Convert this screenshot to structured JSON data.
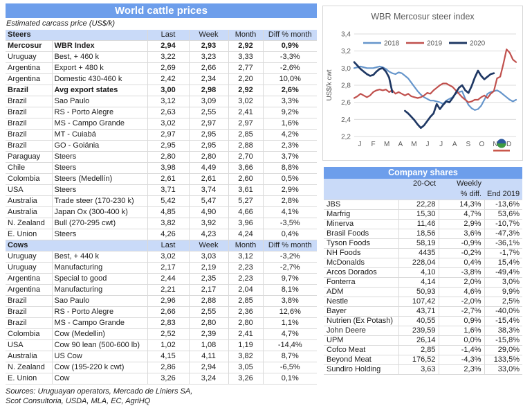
{
  "colors": {
    "title_bar_blue": "#6D9EEB",
    "header_light_blue": "#C9DAF8",
    "grid_line": "#DADADA",
    "axis_text_gray": "#595959",
    "series_2018": "#6595CB",
    "series_2019": "#C0504D",
    "series_2020": "#1F3864"
  },
  "left_table": {
    "title": "World cattle prices",
    "subtitle": "Estimated carcass price (US$/k)",
    "columns": [
      "Last",
      "Week",
      "Month",
      "Diff % month"
    ],
    "sections": [
      {
        "name": "Steers",
        "rows": [
          {
            "country": "Mercosur",
            "item": "WBR Index",
            "last": "2,94",
            "week": "2,93",
            "month": "2,92",
            "diff": "0,9%",
            "bold": true
          },
          {
            "country": "Uruguay",
            "item": "Best, + 460 k",
            "last": "3,22",
            "week": "3,23",
            "month": "3,33",
            "diff": "-3,3%"
          },
          {
            "country": "Argentina",
            "item": "Export + 480 k",
            "last": "2,69",
            "week": "2,66",
            "month": "2,77",
            "diff": "-2,6%"
          },
          {
            "country": "Argentina",
            "item": "Domestic 430-460 k",
            "last": "2,42",
            "week": "2,34",
            "month": "2,20",
            "diff": "10,0%"
          },
          {
            "country": "Brazil",
            "item": "Avg export states",
            "last": "3,00",
            "week": "2,98",
            "month": "2,92",
            "diff": "2,6%",
            "bold": true
          },
          {
            "country": "Brazil",
            "item": "Sao Paulo",
            "last": "3,12",
            "week": "3,09",
            "month": "3,02",
            "diff": "3,3%"
          },
          {
            "country": "Brazil",
            "item": "RS - Porto Alegre",
            "last": "2,63",
            "week": "2,55",
            "month": "2,41",
            "diff": "9,2%"
          },
          {
            "country": "Brazil",
            "item": "MS - Campo Grande",
            "last": "3,02",
            "week": "2,97",
            "month": "2,97",
            "diff": "1,6%"
          },
          {
            "country": "Brazil",
            "item": "MT - Cuiabá",
            "last": "2,97",
            "week": "2,95",
            "month": "2,85",
            "diff": "4,2%"
          },
          {
            "country": "Brazil",
            "item": "GO - Goiánia",
            "last": "2,95",
            "week": "2,95",
            "month": "2,88",
            "diff": "2,3%"
          },
          {
            "country": "Paraguay",
            "item": "Steers",
            "last": "2,80",
            "week": "2,80",
            "month": "2,70",
            "diff": "3,7%"
          },
          {
            "country": "Chile",
            "item": "Steers",
            "last": "3,98",
            "week": "4,49",
            "month": "3,66",
            "diff": "8,8%"
          },
          {
            "country": "Colombia",
            "item": "Steers (Medellín)",
            "last": "2,61",
            "week": "2,61",
            "month": "2,60",
            "diff": "0,5%"
          },
          {
            "country": "USA",
            "item": "Steers",
            "last": "3,71",
            "week": "3,74",
            "month": "3,61",
            "diff": "2,9%"
          },
          {
            "country": "Australia",
            "item": "Trade steer (170-230 k)",
            "last": "5,42",
            "week": "5,47",
            "month": "5,27",
            "diff": "2,8%"
          },
          {
            "country": "Australia",
            "item": "Japan Ox (300-400 k)",
            "last": "4,85",
            "week": "4,90",
            "month": "4,66",
            "diff": "4,1%"
          },
          {
            "country": "N. Zealand",
            "item": "Bull (270-295 cwt)",
            "last": "3,82",
            "week": "3,92",
            "month": "3,96",
            "diff": "-3,5%"
          },
          {
            "country": "E. Union",
            "item": "Steers",
            "last": "4,26",
            "week": "4,23",
            "month": "4,24",
            "diff": "0,4%"
          }
        ]
      },
      {
        "name": "Cows",
        "rows": [
          {
            "country": "Uruguay",
            "item": "Best, + 440 k",
            "last": "3,02",
            "week": "3,03",
            "month": "3,12",
            "diff": "-3,2%"
          },
          {
            "country": "Uruguay",
            "item": "Manufacturing",
            "last": "2,17",
            "week": "2,19",
            "month": "2,23",
            "diff": "-2,7%"
          },
          {
            "country": "Argentina",
            "item": "Special to good",
            "last": "2,44",
            "week": "2,35",
            "month": "2,23",
            "diff": "9,7%"
          },
          {
            "country": "Argentina",
            "item": "Manufacturing",
            "last": "2,21",
            "week": "2,17",
            "month": "2,04",
            "diff": "8,1%"
          },
          {
            "country": "Brazil",
            "item": "Sao Paulo",
            "last": "2,96",
            "week": "2,88",
            "month": "2,85",
            "diff": "3,8%"
          },
          {
            "country": "Brazil",
            "item": "RS - Porto Alegre",
            "last": "2,66",
            "week": "2,55",
            "month": "2,36",
            "diff": "12,6%"
          },
          {
            "country": "Brazil",
            "item": "MS - Campo Grande",
            "last": "2,83",
            "week": "2,80",
            "month": "2,80",
            "diff": "1,1%"
          },
          {
            "country": "Colombia",
            "item": "Cow (Medellin)",
            "last": "2,52",
            "week": "2,39",
            "month": "2,41",
            "diff": "4,7%"
          },
          {
            "country": "USA",
            "item": "Cow 90 lean (500-600 lb)",
            "last": "1,02",
            "week": "1,08",
            "month": "1,19",
            "diff": "-14,4%"
          },
          {
            "country": "Australia",
            "item": "US Cow",
            "last": "4,15",
            "week": "4,11",
            "month": "3,82",
            "diff": "8,7%"
          },
          {
            "country": "N. Zealand",
            "item": "Cow (195-220 k cwt)",
            "last": "2,86",
            "week": "2,94",
            "month": "3,05",
            "diff": "-6,5%"
          },
          {
            "country": "E. Union",
            "item": "Cow",
            "last": "3,26",
            "week": "3,24",
            "month": "3,26",
            "diff": "0,1%"
          }
        ]
      }
    ],
    "sources_line1": "Sources: Uruguayan operators, Mercado de Liniers SA,",
    "sources_line2": "Scot Consultoria, USDA, MLA, EC, AgriHQ"
  },
  "chart": {
    "title": "WBR Mercosur steer index",
    "logo_icon": "tardaguila-globe-logo"
  },
  "chart_data": {
    "type": "line",
    "title": "WBR Mercosur steer index",
    "ylabel": "US$/k cwt",
    "xlabel": "",
    "x_unit": "weeks (Jan-Dec)",
    "xticklabels": [
      "J",
      "F",
      "M",
      "A",
      "M",
      "J",
      "J",
      "A",
      "S",
      "O",
      "N",
      "D"
    ],
    "ylim": [
      2.2,
      3.4
    ],
    "ytick_step": 0.2,
    "grid": "horizontal",
    "legend_position": "top-inside",
    "series": [
      {
        "name": "2018",
        "color": "#6595CB",
        "width": 2.2,
        "values": [
          3.0,
          3.01,
          3.02,
          3.01,
          3.0,
          3.0,
          3.0,
          3.01,
          3.02,
          3.01,
          2.99,
          2.96,
          2.94,
          2.93,
          2.95,
          2.94,
          2.91,
          2.88,
          2.83,
          2.78,
          2.73,
          2.69,
          2.66,
          2.64,
          2.62,
          2.62,
          2.61,
          2.6,
          2.58,
          2.62,
          2.64,
          2.66,
          2.7,
          2.72,
          2.73,
          2.64,
          2.57,
          2.53,
          2.51,
          2.52,
          2.56,
          2.63,
          2.7,
          2.72,
          2.73,
          2.74,
          2.72,
          2.69,
          2.66,
          2.63,
          2.61,
          2.63
        ]
      },
      {
        "name": "2019",
        "color": "#C0504D",
        "width": 2.2,
        "values": [
          2.65,
          2.67,
          2.7,
          2.68,
          2.66,
          2.68,
          2.72,
          2.74,
          2.75,
          2.74,
          2.75,
          2.72,
          2.74,
          2.7,
          2.72,
          2.7,
          2.68,
          2.7,
          2.67,
          2.66,
          2.65,
          2.66,
          2.68,
          2.71,
          2.7,
          2.74,
          2.77,
          2.8,
          2.82,
          2.82,
          2.8,
          2.78,
          2.74,
          2.7,
          2.66,
          2.63,
          2.6,
          2.61,
          2.63,
          2.63,
          2.66,
          2.68,
          2.65,
          2.7,
          2.73,
          2.88,
          2.9,
          3.05,
          3.22,
          3.18,
          3.1,
          3.07
        ]
      },
      {
        "name": "2020",
        "color": "#1F3864",
        "width": 2.7,
        "values": [
          3.07,
          3.03,
          2.99,
          2.96,
          2.93,
          2.91,
          2.92,
          2.96,
          2.99,
          3.0,
          2.96,
          2.89,
          2.72,
          null,
          null,
          null,
          2.5,
          2.47,
          2.43,
          2.39,
          2.34,
          2.3,
          2.33,
          2.38,
          2.43,
          2.47,
          2.58,
          2.52,
          2.57,
          2.61,
          2.6,
          2.65,
          2.71,
          2.77,
          2.8,
          2.74,
          2.71,
          2.79,
          2.89,
          2.97,
          2.91,
          2.87,
          2.9,
          2.93,
          2.94,
          null,
          null,
          null,
          null,
          null,
          null,
          null
        ]
      }
    ]
  },
  "shares_table": {
    "title": "Company shares",
    "header_line1": [
      "",
      "20-Oct",
      "Weekly",
      ""
    ],
    "header_line2": [
      "",
      "",
      "% diff.",
      "End 2019"
    ],
    "rows": [
      {
        "name": "JBS",
        "price": "22,28",
        "weekly": "14,3%",
        "end2019": "-13,6%"
      },
      {
        "name": "Marfrig",
        "price": "15,30",
        "weekly": "4,7%",
        "end2019": "53,6%"
      },
      {
        "name": "Minerva",
        "price": "11,46",
        "weekly": "2,9%",
        "end2019": "-10,7%"
      },
      {
        "name": "Brasil Foods",
        "price": "18,56",
        "weekly": "3,6%",
        "end2019": "-47,3%"
      },
      {
        "name": "Tyson Foods",
        "price": "58,19",
        "weekly": "-0,9%",
        "end2019": "-36,1%"
      },
      {
        "name": "NH Foods",
        "price": "4435",
        "weekly": "-0,2%",
        "end2019": "-1,7%"
      },
      {
        "name": "McDonalds",
        "price": "228,04",
        "weekly": "0,4%",
        "end2019": "15,4%"
      },
      {
        "name": "Arcos Dorados",
        "price": "4,10",
        "weekly": "-3,8%",
        "end2019": "-49,4%"
      },
      {
        "name": "Fonterra",
        "price": "4,14",
        "weekly": "2,0%",
        "end2019": "3,0%"
      },
      {
        "name": "ADM",
        "price": "50,93",
        "weekly": "4,6%",
        "end2019": "9,9%"
      },
      {
        "name": "Nestle",
        "price": "107,42",
        "weekly": "-2,0%",
        "end2019": "2,5%"
      },
      {
        "name": "Bayer",
        "price": "43,71",
        "weekly": "-2,7%",
        "end2019": "-40,0%"
      },
      {
        "name": "Nutrien (Ex Potash)",
        "price": "40,55",
        "weekly": "0,9%",
        "end2019": "-15,4%"
      },
      {
        "name": "John Deere",
        "price": "239,59",
        "weekly": "1,6%",
        "end2019": "38,3%"
      },
      {
        "name": "UPM",
        "price": "26,14",
        "weekly": "0,0%",
        "end2019": "-15,8%"
      },
      {
        "name": "Cofco Meat",
        "price": "2,85",
        "weekly": "-1,4%",
        "end2019": "29,0%"
      },
      {
        "name": "Beyond Meat",
        "price": "176,52",
        "weekly": "-4,3%",
        "end2019": "133,5%"
      },
      {
        "name": "Sundiro Holding",
        "price": "3,63",
        "weekly": "2,3%",
        "end2019": "33,0%"
      }
    ]
  }
}
